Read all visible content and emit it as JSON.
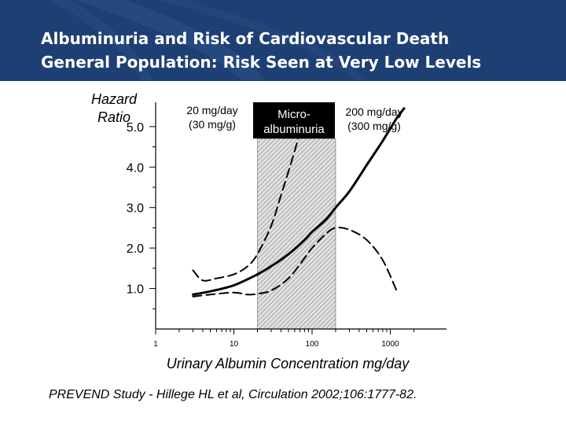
{
  "slide": {
    "title_line1": "Albuminuria and Risk of Cardiovascular Death",
    "title_line2": "General Population: Risk Seen at Very Low Levels",
    "citation": "PREVEND Study - Hillege HL et al, Circulation 2002;106:1777-82.",
    "colors": {
      "header": "#1e3f73",
      "hazard_curve": "#000000",
      "shaded_band": "#bfbfbf"
    }
  },
  "chart_data": {
    "type": "line",
    "xscale": "log",
    "xlim": [
      1,
      2000
    ],
    "ylim": [
      0,
      5.6
    ],
    "ylabel_line1": "Hazard",
    "ylabel_line2": "Ratio",
    "xlabel": "Urinary Albumin Concentration mg/day",
    "x_ticks": [
      1,
      10,
      100,
      1000
    ],
    "x_tick_labels": [
      "1",
      "10",
      "100",
      "1000"
    ],
    "y_ticks": [
      1,
      2,
      3,
      4,
      5
    ],
    "y_tick_labels": [
      "1.0",
      "2.0",
      "3.0",
      "4.0",
      "5.0"
    ],
    "shaded_region": {
      "x_start": 20,
      "x_end": 200,
      "label_line1": "Micro-",
      "label_line2": "albuminuria"
    },
    "annotations": [
      {
        "line1": "20 mg/day",
        "line2": "(30 mg/g)"
      },
      {
        "line1": "200 mg/day",
        "line2": "(300 mg/g)"
      }
    ],
    "series": [
      {
        "role": "estimate",
        "x": [
          3,
          5,
          10,
          20,
          30,
          50,
          80,
          100,
          150,
          200,
          300,
          500,
          800,
          1200,
          1500
        ],
        "y": [
          0.85,
          0.93,
          1.08,
          1.35,
          1.55,
          1.85,
          2.2,
          2.4,
          2.7,
          3.0,
          3.4,
          4.05,
          4.65,
          5.2,
          5.45
        ]
      },
      {
        "role": "upper_ci",
        "x": [
          3,
          4,
          6,
          10,
          15,
          20,
          30,
          40,
          60,
          80
        ],
        "y": [
          1.45,
          1.2,
          1.25,
          1.35,
          1.55,
          1.85,
          2.55,
          3.3,
          4.4,
          5.3
        ]
      },
      {
        "role": "lower_ci",
        "x": [
          3,
          5,
          10,
          15,
          20,
          30,
          50,
          80,
          100,
          150,
          200,
          300,
          500,
          800,
          1200
        ],
        "y": [
          0.8,
          0.85,
          0.9,
          0.85,
          0.87,
          0.95,
          1.25,
          1.75,
          2.0,
          2.35,
          2.5,
          2.45,
          2.2,
          1.7,
          0.95
        ]
      }
    ]
  }
}
